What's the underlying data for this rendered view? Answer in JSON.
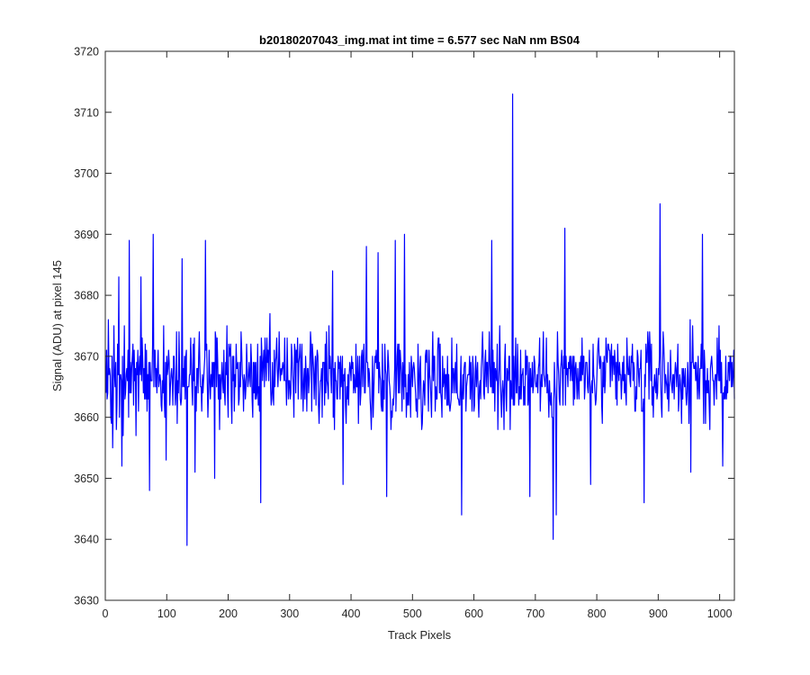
{
  "chart_data": {
    "type": "line",
    "title": "b20180207043_img.mat int time = 6.577 sec  NaN nm BS04",
    "xlabel": "Track Pixels",
    "ylabel": "Signal (ADU) at pixel 145",
    "xlim": [
      0,
      1024
    ],
    "ylim": [
      3630,
      3720
    ],
    "xticks": [
      0,
      100,
      200,
      300,
      400,
      500,
      600,
      700,
      800,
      900,
      1000
    ],
    "yticks": [
      3630,
      3640,
      3650,
      3660,
      3670,
      3680,
      3690,
      3700,
      3710,
      3720
    ],
    "grid": false,
    "series": [
      {
        "color": "#0000ff",
        "description_note": "",
        "x_start": 1,
        "x_step": 1,
        "baseline": 3666.5,
        "noise_amplitude": 10,
        "seed": 145,
        "spikes": [
          {
            "x": 12,
            "y": 3655
          },
          {
            "x": 22,
            "y": 3683
          },
          {
            "x": 27,
            "y": 3652
          },
          {
            "x": 39,
            "y": 3689
          },
          {
            "x": 58,
            "y": 3683
          },
          {
            "x": 72,
            "y": 3648
          },
          {
            "x": 78,
            "y": 3690
          },
          {
            "x": 99,
            "y": 3653
          },
          {
            "x": 125,
            "y": 3686
          },
          {
            "x": 133,
            "y": 3639
          },
          {
            "x": 146,
            "y": 3651
          },
          {
            "x": 163,
            "y": 3689
          },
          {
            "x": 178,
            "y": 3650
          },
          {
            "x": 253,
            "y": 3646
          },
          {
            "x": 370,
            "y": 3684
          },
          {
            "x": 387,
            "y": 3649
          },
          {
            "x": 425,
            "y": 3688
          },
          {
            "x": 444,
            "y": 3687
          },
          {
            "x": 458,
            "y": 3647
          },
          {
            "x": 472,
            "y": 3689
          },
          {
            "x": 487,
            "y": 3690
          },
          {
            "x": 580,
            "y": 3644
          },
          {
            "x": 629,
            "y": 3689
          },
          {
            "x": 663,
            "y": 3713
          },
          {
            "x": 691,
            "y": 3647
          },
          {
            "x": 729,
            "y": 3640
          },
          {
            "x": 734,
            "y": 3644
          },
          {
            "x": 748,
            "y": 3691
          },
          {
            "x": 790,
            "y": 3649
          },
          {
            "x": 877,
            "y": 3646
          },
          {
            "x": 903,
            "y": 3695
          },
          {
            "x": 953,
            "y": 3651
          },
          {
            "x": 972,
            "y": 3690
          },
          {
            "x": 1005,
            "y": 3652
          }
        ]
      }
    ]
  }
}
